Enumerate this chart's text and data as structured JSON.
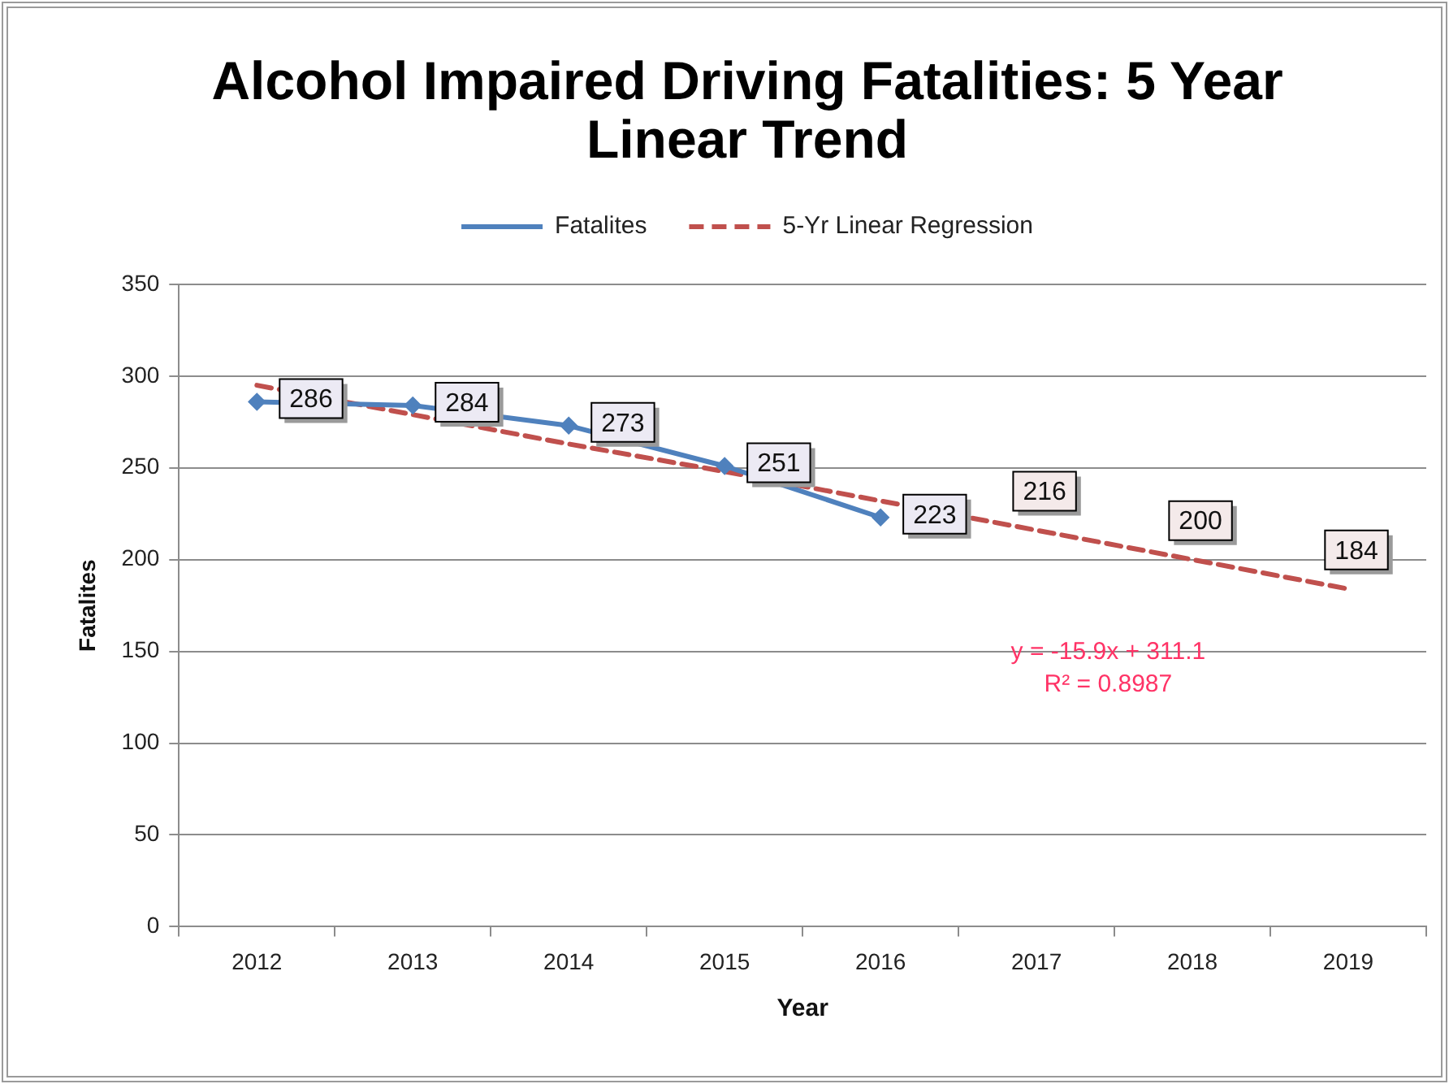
{
  "chart_data": {
    "type": "line",
    "title": "Alcohol Impaired Driving Fatalities: 5 Year Linear Trend",
    "xlabel": "Year",
    "ylabel": "Fatalites",
    "categories": [
      "2012",
      "2013",
      "2014",
      "2015",
      "2016",
      "2017",
      "2018",
      "2019"
    ],
    "series": [
      {
        "name": "Fatalites",
        "color": "#4f81bd",
        "values": [
          286,
          284,
          273,
          251,
          223,
          null,
          null,
          null
        ],
        "value_labels": [
          "286",
          "284",
          "273",
          "251",
          "223",
          null,
          null,
          null
        ],
        "marker": "diamond",
        "line_style": "solid"
      },
      {
        "name": "5-Yr Linear Regression",
        "color": "#c0504d",
        "values": [
          295,
          279,
          263,
          248,
          232,
          216,
          200,
          184
        ],
        "value_labels": [
          null,
          null,
          null,
          null,
          null,
          "216",
          "200",
          "184"
        ],
        "marker": "none",
        "line_style": "dashed"
      }
    ],
    "ylim": [
      0,
      350
    ],
    "yticks": [
      0,
      50,
      100,
      150,
      200,
      250,
      300,
      350
    ],
    "grid": "y",
    "legend": "top",
    "annotations": [
      "y = -15.9x + 311.1",
      "R² = 0.8987"
    ]
  }
}
